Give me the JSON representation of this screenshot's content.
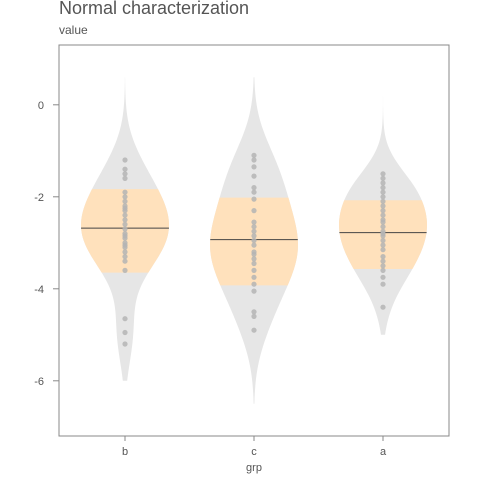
{
  "chart_data": {
    "type": "violin",
    "title": "Normal characterization",
    "subtitle": "value",
    "xlabel": "grp",
    "ylabel": "",
    "ylim": [
      -7.2,
      1.3
    ],
    "yticks": [
      0,
      -2,
      -4,
      -6
    ],
    "categories": [
      "b",
      "c",
      "a"
    ],
    "grid": false,
    "colors": {
      "violin": "#e6e6e6",
      "band": "#ffe1bc",
      "median_line": "#444444",
      "points": "#b4b4b4",
      "frame": "#888888"
    },
    "groups": [
      {
        "name": "b",
        "median": -2.68,
        "band": [
          -3.65,
          -1.8
        ],
        "violin_range": [
          -6.0,
          0.6
        ],
        "points": [
          -1.2,
          -1.4,
          -1.5,
          -1.6,
          -1.9,
          -2.0,
          -2.1,
          -2.2,
          -2.25,
          -2.3,
          -2.4,
          -2.5,
          -2.6,
          -2.7,
          -2.8,
          -2.85,
          -2.9,
          -3.0,
          -3.05,
          -3.1,
          -3.2,
          -3.3,
          -3.4,
          -3.6,
          -4.65,
          -4.95,
          -5.2
        ]
      },
      {
        "name": "c",
        "median": -2.93,
        "band": [
          -3.95,
          -2.0
        ],
        "violin_range": [
          -6.5,
          0.6
        ],
        "points": [
          -1.1,
          -1.2,
          -1.35,
          -1.55,
          -1.8,
          -1.9,
          -2.05,
          -2.3,
          -2.55,
          -2.65,
          -2.75,
          -2.85,
          -2.95,
          -3.05,
          -3.2,
          -3.25,
          -3.35,
          -3.45,
          -3.6,
          -3.75,
          -3.9,
          -4.05,
          -4.5,
          -4.6,
          -4.9
        ]
      },
      {
        "name": "a",
        "median": -2.78,
        "band": [
          -3.6,
          -2.05
        ],
        "violin_range": [
          -5.0,
          0.2
        ],
        "points": [
          -1.5,
          -1.6,
          -1.7,
          -1.8,
          -1.9,
          -2.0,
          -2.1,
          -2.2,
          -2.3,
          -2.4,
          -2.5,
          -2.55,
          -2.65,
          -2.75,
          -2.8,
          -2.85,
          -2.95,
          -3.05,
          -3.15,
          -3.3,
          -3.4,
          -3.5,
          -3.6,
          -3.75,
          -3.9,
          -4.4
        ]
      }
    ]
  }
}
